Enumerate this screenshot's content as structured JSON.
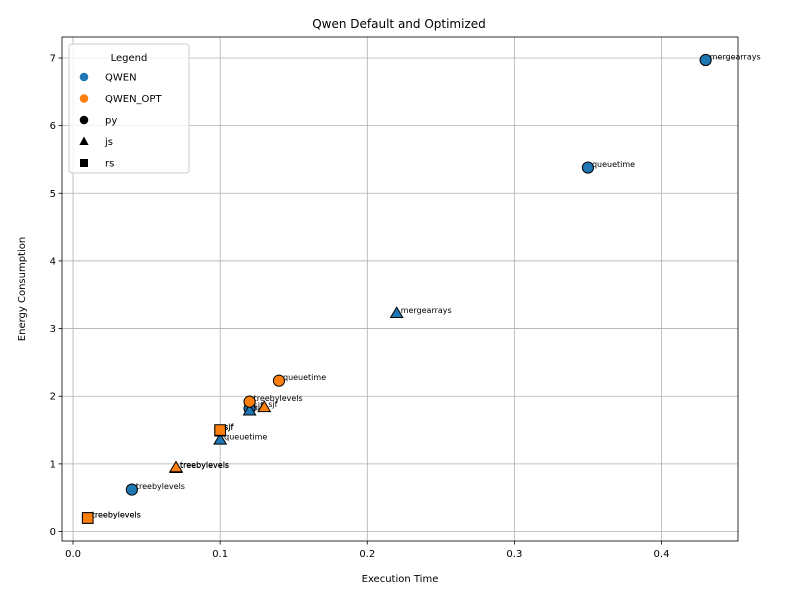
{
  "chart_data": {
    "type": "scatter",
    "title": "Qwen Default and Optimized",
    "xlabel": "Execution Time",
    "ylabel": "Energy Consumption",
    "xlim": [
      -0.0075,
      0.452
    ],
    "ylim": [
      -0.14,
      7.31
    ],
    "xticks": [
      0.0,
      0.1,
      0.2,
      0.3,
      0.4
    ],
    "xtick_labels": [
      "0.0",
      "0.1",
      "0.2",
      "0.3",
      "0.4"
    ],
    "yticks": [
      0,
      1,
      2,
      3,
      4,
      5,
      6,
      7
    ],
    "ytick_labels": [
      "0",
      "1",
      "2",
      "3",
      "4",
      "5",
      "6",
      "7"
    ],
    "grid": true,
    "legend": {
      "title": "Legend",
      "placement": "upper-left",
      "entries": [
        {
          "label": "QWEN",
          "marker": "circle",
          "color": "#1f77b4"
        },
        {
          "label": "QWEN_OPT",
          "marker": "circle",
          "color": "#ff7f0e"
        },
        {
          "label": "py",
          "marker": "circle",
          "color": "#000000"
        },
        {
          "label": "js",
          "marker": "triangle",
          "color": "#000000"
        },
        {
          "label": "rs",
          "marker": "square",
          "color": "#000000"
        }
      ]
    },
    "colors": {
      "QWEN": "#1f77b4",
      "QWEN_OPT": "#ff7f0e"
    },
    "markers": {
      "py": "circle",
      "js": "triangle",
      "rs": "square"
    },
    "series": [
      {
        "name": "QWEN",
        "points": [
          {
            "x": 0.43,
            "y": 6.97,
            "lang": "py",
            "label": "mergearrays"
          },
          {
            "x": 0.35,
            "y": 5.38,
            "lang": "py",
            "label": "queuetime"
          },
          {
            "x": 0.22,
            "y": 3.22,
            "lang": "js",
            "label": "mergearrays"
          },
          {
            "x": 0.12,
            "y": 1.82,
            "lang": "py",
            "label": "sjf"
          },
          {
            "x": 0.12,
            "y": 1.78,
            "lang": "js",
            "label": "sjf"
          },
          {
            "x": 0.1,
            "y": 1.35,
            "lang": "js",
            "label": "queuetime"
          },
          {
            "x": 0.04,
            "y": 0.62,
            "lang": "py",
            "label": "treebylevels"
          },
          {
            "x": 0.1,
            "y": 1.49,
            "lang": "rs",
            "label": "sjf"
          },
          {
            "x": 0.01,
            "y": 0.2,
            "lang": "rs",
            "label": "treebylevels"
          },
          {
            "x": 0.07,
            "y": 0.93,
            "lang": "js",
            "label": "treebylevels"
          }
        ]
      },
      {
        "name": "QWEN_OPT",
        "points": [
          {
            "x": 0.14,
            "y": 2.23,
            "lang": "py",
            "label": "queuetime"
          },
          {
            "x": 0.12,
            "y": 1.92,
            "lang": "py",
            "label": "treebylevels"
          },
          {
            "x": 0.13,
            "y": 1.83,
            "lang": "js",
            "label": "sjf"
          },
          {
            "x": 0.1,
            "y": 1.5,
            "lang": "rs",
            "label": "sjf"
          },
          {
            "x": 0.07,
            "y": 0.94,
            "lang": "js",
            "label": "treebylevels"
          },
          {
            "x": 0.01,
            "y": 0.2,
            "lang": "rs",
            "label": "treebylevels"
          }
        ]
      }
    ]
  }
}
